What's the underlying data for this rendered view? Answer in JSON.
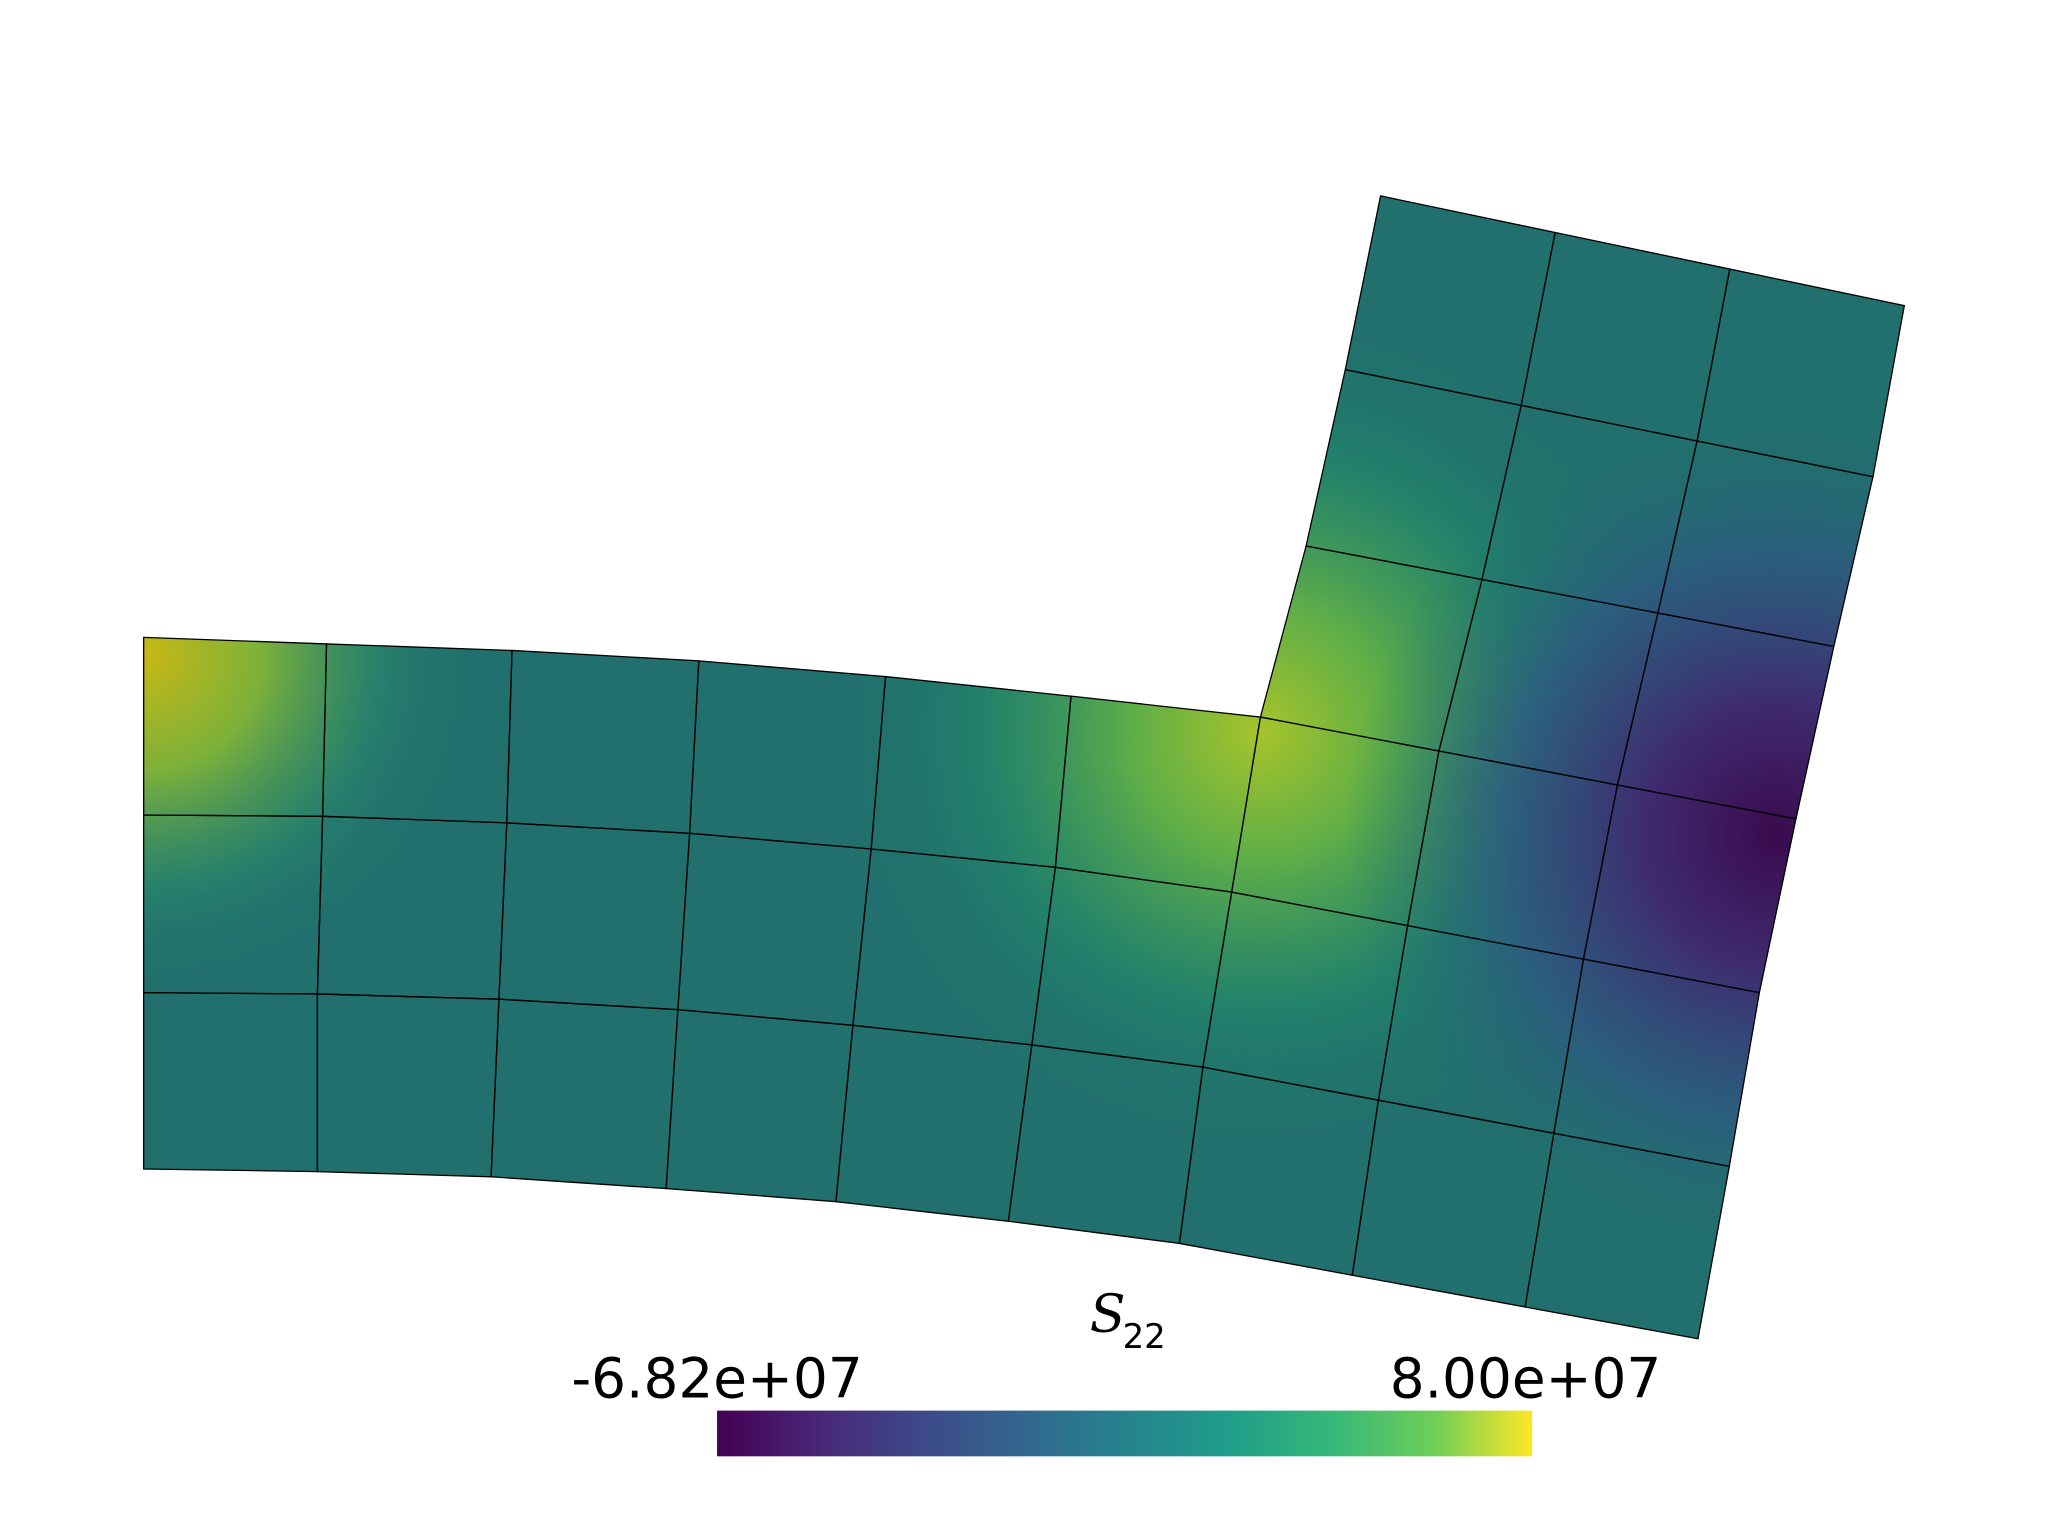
{
  "colorbar": {
    "title": "S",
    "subscript": "22",
    "colormap": "viridis",
    "range": [
      -68200000,
      80000000
    ],
    "ticks": [
      {
        "value": -68200000,
        "label": "-6.82e+07"
      },
      {
        "value": 80000000,
        "label": "8.00e+07"
      }
    ]
  }
}
